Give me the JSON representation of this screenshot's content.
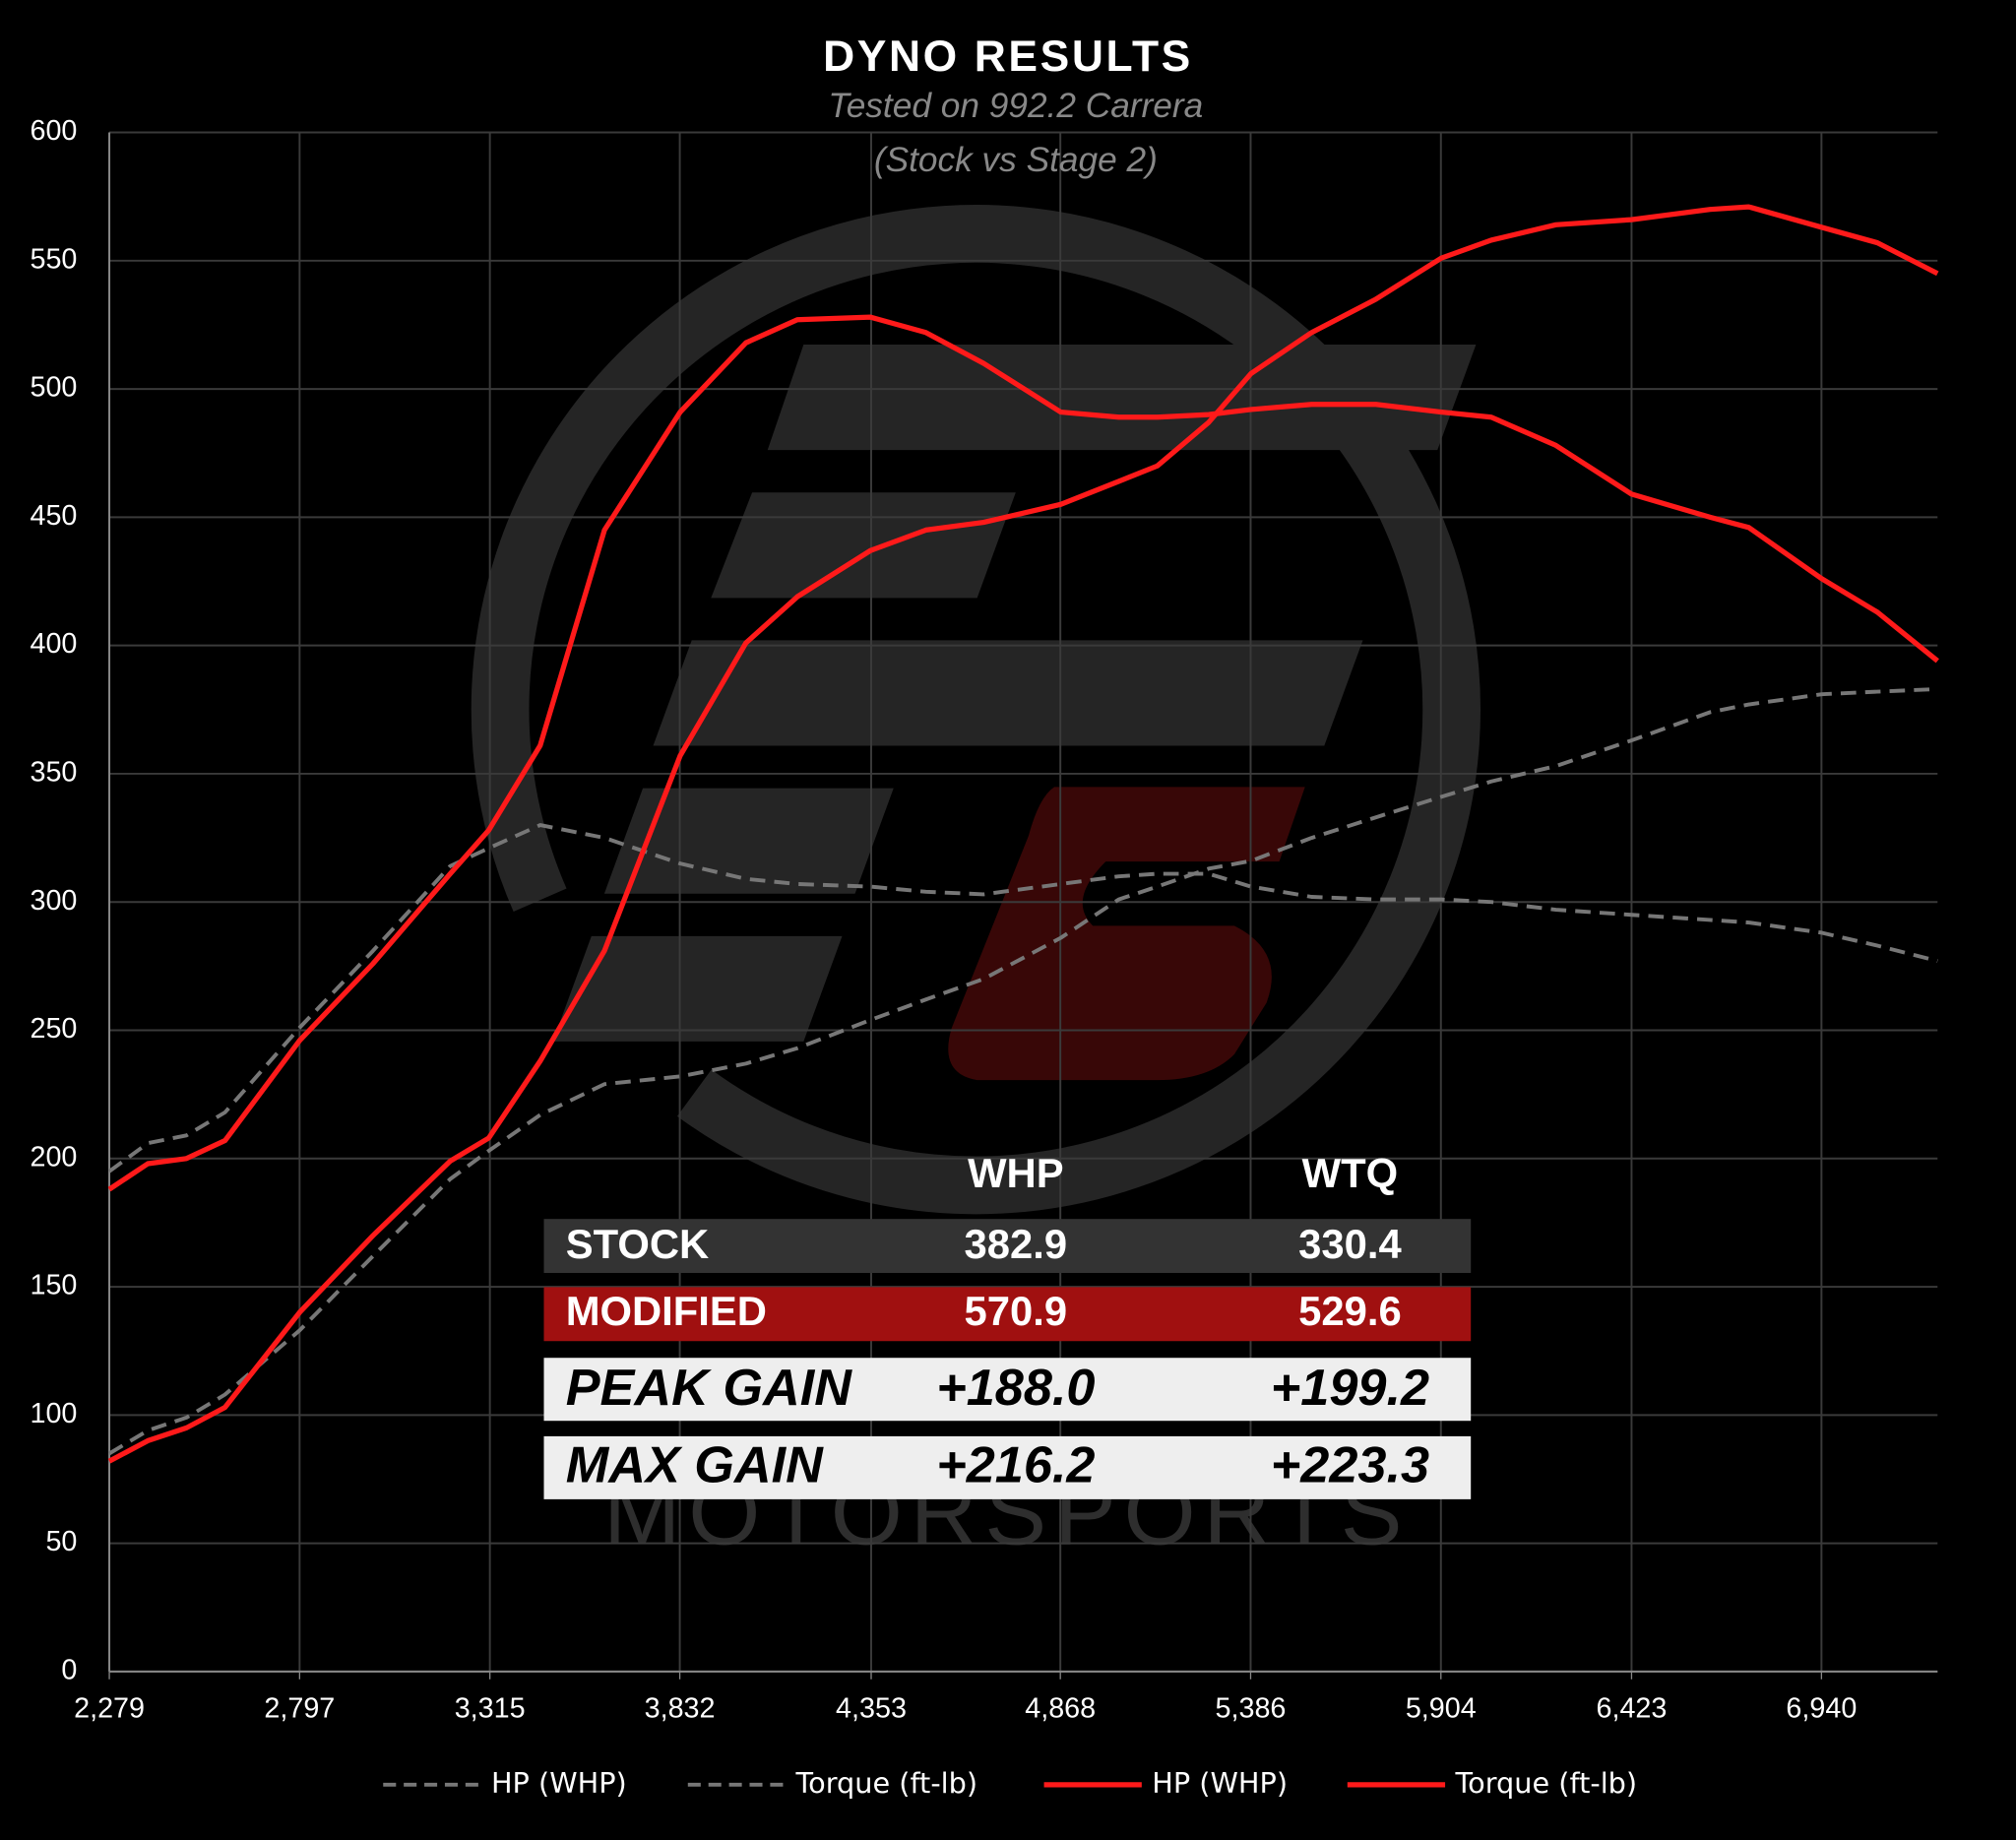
{
  "chart_data": {
    "type": "line",
    "title": "DYNO RESULTS",
    "subtitle": [
      "Tested on 992.2 Carrera",
      "(Stock vs Stage 2)"
    ],
    "watermark": "MOTORSPORTS",
    "x": [
      2279,
      2384,
      2489,
      2594,
      2797,
      2997,
      3207,
      3312,
      3452,
      3627,
      3833,
      4012,
      4152,
      4351,
      4502,
      4659,
      4869,
      5027,
      5132,
      5272,
      5387,
      5552,
      5727,
      5905,
      6041,
      6217,
      6423,
      6637,
      6742,
      6941,
      7092,
      7256
    ],
    "series": [
      {
        "name": "HP (WHP)",
        "color": "#777777",
        "dashed": true,
        "values": [
          85,
          94,
          99,
          108,
          133,
          162,
          192,
          203,
          217,
          229,
          232,
          237,
          243,
          254,
          262,
          270,
          286,
          301,
          306,
          313,
          316,
          325,
          333,
          341,
          347,
          353,
          363,
          374,
          377,
          381,
          382,
          383
        ]
      },
      {
        "name": "Torque (ft-lb)",
        "color": "#777777",
        "dashed": true,
        "values": [
          195,
          206,
          209,
          218,
          251,
          281,
          314,
          321,
          330,
          325,
          315,
          309,
          307,
          306,
          304,
          303,
          307,
          310,
          311,
          311,
          306,
          302,
          301,
          301,
          300,
          297,
          295,
          293,
          292,
          288,
          283,
          277
        ]
      },
      {
        "name": "HP (WHP)",
        "color": "#ff1a1a",
        "dashed": false,
        "values": [
          82,
          90,
          95,
          103,
          140,
          170,
          199,
          208,
          238,
          281,
          357,
          401,
          419,
          437,
          445,
          448,
          455,
          464,
          470,
          487,
          506,
          522,
          535,
          551,
          558,
          564,
          566,
          570,
          571,
          563,
          557,
          545
        ]
      },
      {
        "name": "Torque (ft-lb)",
        "color": "#ff1a1a",
        "dashed": false,
        "values": [
          188,
          198,
          200,
          207,
          246,
          276,
          311,
          328,
          361,
          445,
          491,
          518,
          527,
          528,
          522,
          510,
          491,
          489,
          489,
          490,
          492,
          494,
          494,
          491,
          489,
          478,
          459,
          450,
          446,
          426,
          413,
          394
        ]
      }
    ],
    "xlim": [
      2279,
      7256
    ],
    "xticks": [
      {
        "value": 2279,
        "label": "2,279"
      },
      {
        "value": 2797,
        "label": "2,797"
      },
      {
        "value": 3315,
        "label": "3,315"
      },
      {
        "value": 3832,
        "label": "3,832"
      },
      {
        "value": 4353,
        "label": "4,353"
      },
      {
        "value": 4868,
        "label": "4,868"
      },
      {
        "value": 5386,
        "label": "5,386"
      },
      {
        "value": 5904,
        "label": "5,904"
      },
      {
        "value": 6423,
        "label": "6,423"
      },
      {
        "value": 6940,
        "label": "6,940"
      }
    ],
    "ylim": [
      0,
      600
    ],
    "yticks": [
      0,
      50,
      100,
      150,
      200,
      250,
      300,
      350,
      400,
      450,
      500,
      550,
      600
    ],
    "grid": true,
    "legend": "bottom"
  },
  "table": {
    "header": [
      "WHP",
      "WTQ"
    ],
    "rows": [
      [
        "STOCK",
        "382.9",
        "330.4"
      ],
      [
        "MODIFIED",
        "570.9",
        "529.6"
      ],
      [
        "PEAK GAIN",
        "+188.0",
        "+199.2"
      ],
      [
        "MAX GAIN",
        "+216.2",
        "+223.3"
      ]
    ]
  }
}
